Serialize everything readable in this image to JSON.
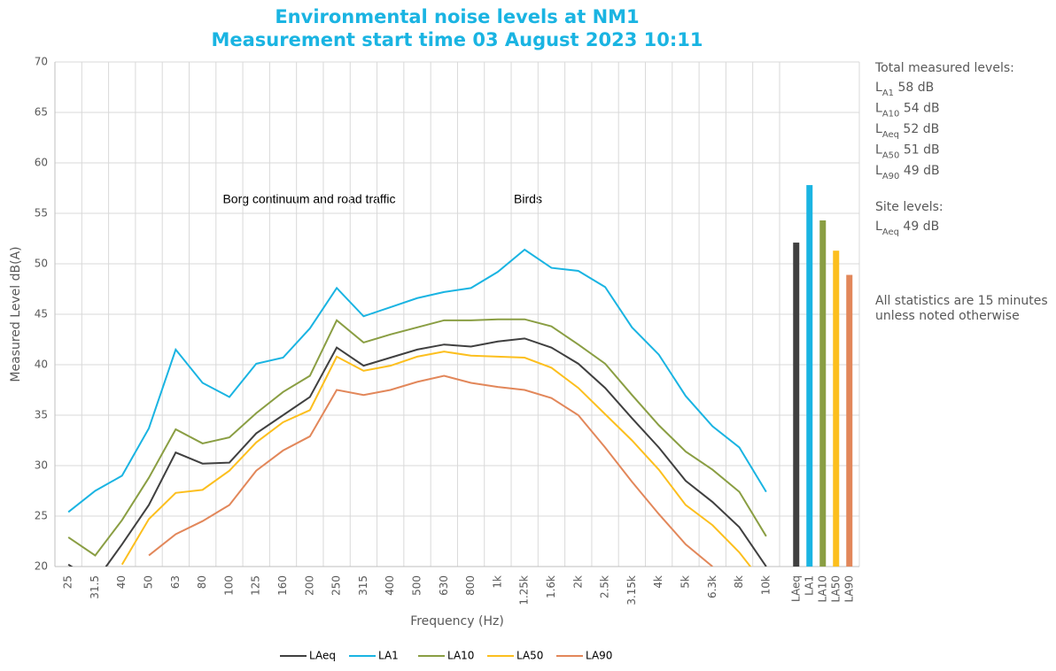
{
  "chart_data": {
    "type": "line",
    "title": [
      "Environmental noise levels at NM1",
      "Measurement start time 03 August 2023 10:11"
    ],
    "xlabel": "Frequency (Hz)",
    "ylabel": "Measured Level dB(A)",
    "categories": [
      "25",
      "31.5",
      "40",
      "50",
      "63",
      "80",
      "100",
      "125",
      "160",
      "200",
      "250",
      "315",
      "400",
      "500",
      "630",
      "800",
      "1k",
      "1.25k",
      "1.6k",
      "2k",
      "2.5k",
      "3.15k",
      "4k",
      "5k",
      "6.3k",
      "8k",
      "10k"
    ],
    "ylim": [
      20,
      70
    ],
    "yticks": [
      20,
      25,
      30,
      35,
      40,
      45,
      50,
      55,
      60,
      65,
      70
    ],
    "grid": true,
    "legend": "bottom",
    "series": [
      {
        "name": "LAeq",
        "color": "#404040",
        "values": [
          20.2,
          18.5,
          22.2,
          26.1,
          31.3,
          30.2,
          30.3,
          33.2,
          35.0,
          36.8,
          41.7,
          39.9,
          40.7,
          41.5,
          42.0,
          41.8,
          42.3,
          42.6,
          41.7,
          40.1,
          37.7,
          34.7,
          31.8,
          28.5,
          26.4,
          23.9,
          20.0
        ]
      },
      {
        "name": "LA1",
        "color": "#1ab4e2",
        "values": [
          25.4,
          27.5,
          29.0,
          33.7,
          41.5,
          38.2,
          36.8,
          40.1,
          40.7,
          43.6,
          47.6,
          44.8,
          45.7,
          46.6,
          47.2,
          47.6,
          49.2,
          51.4,
          49.6,
          49.3,
          47.7,
          43.7,
          41.0,
          36.9,
          33.9,
          31.8,
          27.4
        ]
      },
      {
        "name": "LA10",
        "color": "#8a9e43",
        "values": [
          22.9,
          21.1,
          24.6,
          28.8,
          33.6,
          32.2,
          32.8,
          35.2,
          37.3,
          38.9,
          44.4,
          42.2,
          43.0,
          43.7,
          44.4,
          44.4,
          44.5,
          44.5,
          43.8,
          42.0,
          40.1,
          37.0,
          34.0,
          31.4,
          29.6,
          27.4,
          23.0
        ]
      },
      {
        "name": "LA50",
        "color": "#fcbf1e",
        "values": [
          null,
          null,
          20.2,
          24.7,
          27.3,
          27.6,
          29.5,
          32.3,
          34.3,
          35.5,
          40.8,
          39.4,
          39.9,
          40.8,
          41.3,
          40.9,
          40.8,
          40.7,
          39.7,
          37.7,
          35.1,
          32.5,
          29.6,
          26.1,
          24.1,
          21.4,
          18.0
        ]
      },
      {
        "name": "LA90",
        "color": "#e2875a",
        "values": [
          null,
          null,
          null,
          21.1,
          23.2,
          24.5,
          26.1,
          29.5,
          31.5,
          32.9,
          37.5,
          37.0,
          37.5,
          38.3,
          38.9,
          38.2,
          37.8,
          37.5,
          36.7,
          35.0,
          31.8,
          28.4,
          25.2,
          22.2,
          20.0,
          null,
          null
        ]
      }
    ],
    "totals": {
      "categories": [
        "LAeq",
        "LA1",
        "LA10",
        "LA50",
        "LA90"
      ],
      "values": [
        52.1,
        57.8,
        54.3,
        51.3,
        48.9
      ]
    },
    "annotations": [
      "Borg continuum and road traffic",
      "Birds"
    ],
    "side_text": {
      "heading": "Total measured levels:",
      "levels": [
        {
          "symbol": "L",
          "sub": "A1",
          "text": " 58 dB"
        },
        {
          "symbol": "L",
          "sub": "A10",
          "text": " 54 dB"
        },
        {
          "symbol": "L",
          "sub": "Aeq",
          "text": " 52 dB"
        },
        {
          "symbol": "L",
          "sub": "A50",
          "text": " 51 dB"
        },
        {
          "symbol": "L",
          "sub": "A90",
          "text": " 49 dB"
        }
      ],
      "site_heading": "Site levels:",
      "site_levels": [
        {
          "symbol": "L",
          "sub": "Aeq",
          "text": " 49 dB"
        }
      ],
      "note": [
        "All statistics are 15 minutes",
        "unless noted otherwise"
      ]
    }
  }
}
